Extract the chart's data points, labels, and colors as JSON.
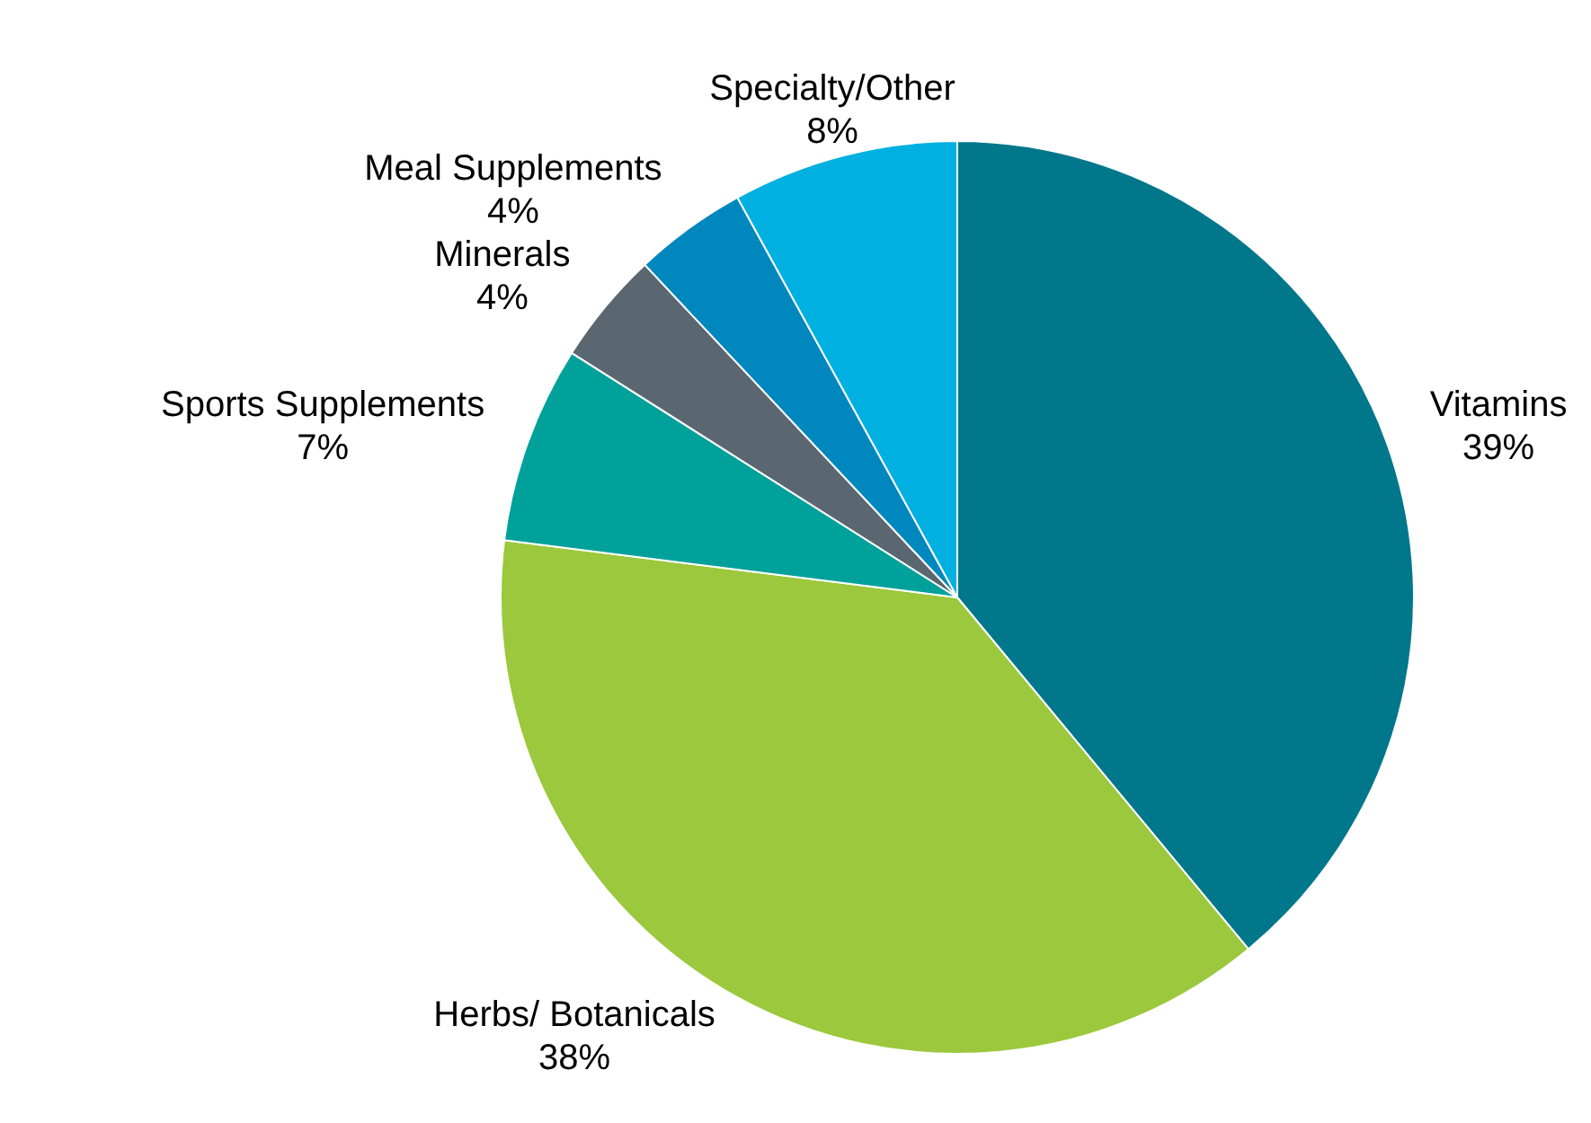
{
  "chart_data": {
    "type": "pie",
    "categories": [
      "Vitamins",
      "Herbs/ Botanicals",
      "Sports Supplements",
      "Minerals",
      "Meal Supplements",
      "Specialty/Other"
    ],
    "values": [
      39,
      38,
      7,
      4,
      4,
      8
    ],
    "value_labels": [
      "39%",
      "38%",
      "7%",
      "4%",
      "4%",
      "8%"
    ],
    "colors": [
      "#00778b",
      "#9bc83c",
      "#00a19a",
      "#5a6670",
      "#0087be",
      "#00b0e0"
    ],
    "legend": false
  }
}
